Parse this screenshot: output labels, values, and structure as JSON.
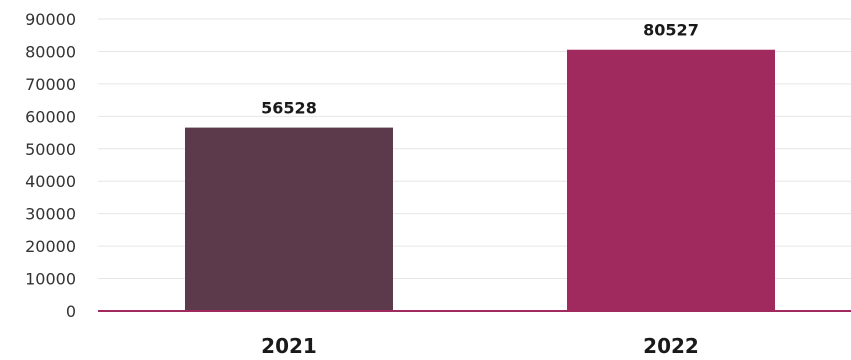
{
  "chart_data": {
    "type": "bar",
    "title": "",
    "xlabel": "",
    "ylabel": "",
    "categories": [
      "2021",
      "2022"
    ],
    "values": [
      56528,
      80527
    ],
    "data_labels": [
      "56528",
      "80527"
    ],
    "y_ticks": [
      0,
      10000,
      20000,
      30000,
      40000,
      50000,
      60000,
      70000,
      80000,
      90000
    ],
    "y_tick_labels": [
      "0",
      "10000",
      "20000",
      "30000",
      "40000",
      "50000",
      "60000",
      "70000",
      "80000",
      "90000"
    ],
    "ylim": [
      0,
      90000
    ],
    "grid": true,
    "legend": "none",
    "colors": {
      "bars": [
        "#5c3a4c",
        "#a02a5e"
      ],
      "axis": "#a02a5e",
      "grid": "#e6e6e6",
      "text": "#1a1a1a"
    }
  }
}
